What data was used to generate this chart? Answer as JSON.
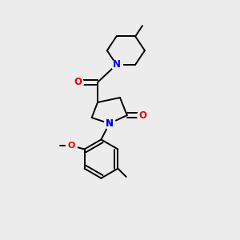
{
  "bg_color": "#ececec",
  "bond_color": "#000000",
  "N_color": "#0000ee",
  "O_color": "#ee0000",
  "font_size": 8.5,
  "line_width": 1.4,
  "fig_size": [
    3.0,
    3.0
  ],
  "dpi": 100,
  "xlim": [
    0,
    10
  ],
  "ylim": [
    0,
    10
  ]
}
